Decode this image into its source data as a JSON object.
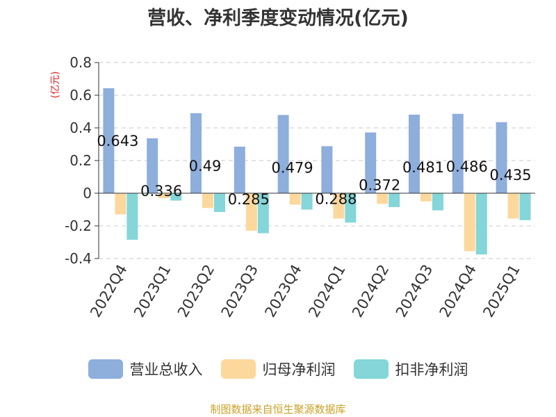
{
  "chart_data": {
    "type": "bar",
    "title": "营收、净利季度变动情况(亿元)",
    "ylabel": "(亿元)",
    "xlabel": "",
    "categories": [
      "2022Q4",
      "2023Q1",
      "2023Q2",
      "2023Q3",
      "2023Q4",
      "2024Q1",
      "2024Q2",
      "2024Q3",
      "2024Q4",
      "2025Q1"
    ],
    "series": [
      {
        "name": "营业总收入",
        "color": "#8eaedc",
        "values": [
          0.643,
          0.336,
          0.49,
          0.285,
          0.479,
          0.288,
          0.372,
          0.481,
          0.486,
          0.435
        ],
        "labels": [
          "0.643",
          "0.336",
          "0.49",
          "0.285",
          "0.479",
          "0.288",
          "0.372",
          "0.481",
          "0.486",
          "0.435"
        ]
      },
      {
        "name": "归母净利润",
        "color": "#fdd89d",
        "values": [
          -0.13,
          -0.03,
          -0.09,
          -0.23,
          -0.07,
          -0.155,
          -0.065,
          -0.05,
          -0.355,
          -0.155
        ]
      },
      {
        "name": "扣非净利润",
        "color": "#84d6d8",
        "values": [
          -0.285,
          -0.045,
          -0.115,
          -0.245,
          -0.1,
          -0.18,
          -0.085,
          -0.105,
          -0.375,
          -0.165
        ]
      }
    ],
    "ylim": [
      -0.4,
      0.8
    ],
    "yticks": [
      -0.4,
      -0.2,
      0,
      0.2,
      0.4,
      0.6,
      0.8
    ],
    "ytick_labels": [
      "-0.4",
      "-0.2",
      "0",
      "0.2",
      "0.4",
      "0.6",
      "0.8"
    ],
    "grid": true,
    "legend_position": "bottom"
  },
  "legend": [
    "营业总收入",
    "归母净利润",
    "扣非净利润"
  ],
  "footer": "制图数据来自恒生聚源数据库"
}
